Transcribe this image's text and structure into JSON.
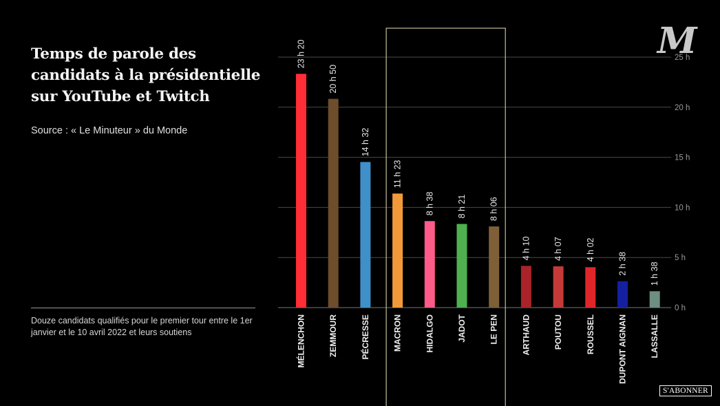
{
  "header": {
    "title": "Temps de parole des candidats à la présidentielle sur YouTube et Twitch",
    "source": "Source : « Le Minuteur » du Monde"
  },
  "note": "Douze candidats qualifiés pour le premier tour entre le 1er janvier et le 10 avril 2022 et leurs soutiens",
  "brand": {
    "logo_glyph": "M",
    "subscribe_label": "S'ABONNER"
  },
  "chart_data": {
    "type": "bar",
    "title": "Temps de parole des candidats à la présidentielle sur YouTube et Twitch",
    "xlabel": "",
    "ylabel": "",
    "ylim": [
      0,
      25
    ],
    "yticks": [
      0,
      5,
      10,
      15,
      20,
      25
    ],
    "ytick_labels": [
      "0 h",
      "5 h",
      "10 h",
      "15 h",
      "20 h",
      "25 h"
    ],
    "grid": true,
    "highlight_group": [
      "MACRON",
      "HIDALGO",
      "JADOT",
      "LE PEN"
    ],
    "categories": [
      "MÉLENCHON",
      "ZEMMOUR",
      "PÉCRESSE",
      "MACRON",
      "HIDALGO",
      "JADOT",
      "LE PEN",
      "ARTHAUD",
      "POUTOU",
      "ROUSSEL",
      "DUPONT AIGNAN",
      "LASSALLE"
    ],
    "values": [
      23.333,
      20.833,
      14.533,
      11.383,
      8.633,
      8.35,
      8.1,
      4.167,
      4.117,
      4.033,
      2.633,
      1.633
    ],
    "data_labels": [
      "23 h 20",
      "20 h 50",
      "14 h 32",
      "11 h 23",
      "8 h 38",
      "8 h 21",
      "8 h 06",
      "4 h 10",
      "4 h 07",
      "4 h 02",
      "2 h 38",
      "1 h 38"
    ],
    "colors": [
      "#ff2d36",
      "#6e4d2c",
      "#3f8fc8",
      "#f29a3a",
      "#ff5b8a",
      "#4fb04f",
      "#7f5f38",
      "#a82428",
      "#c53a38",
      "#e0262a",
      "#1420a0",
      "#6e8e80"
    ]
  }
}
